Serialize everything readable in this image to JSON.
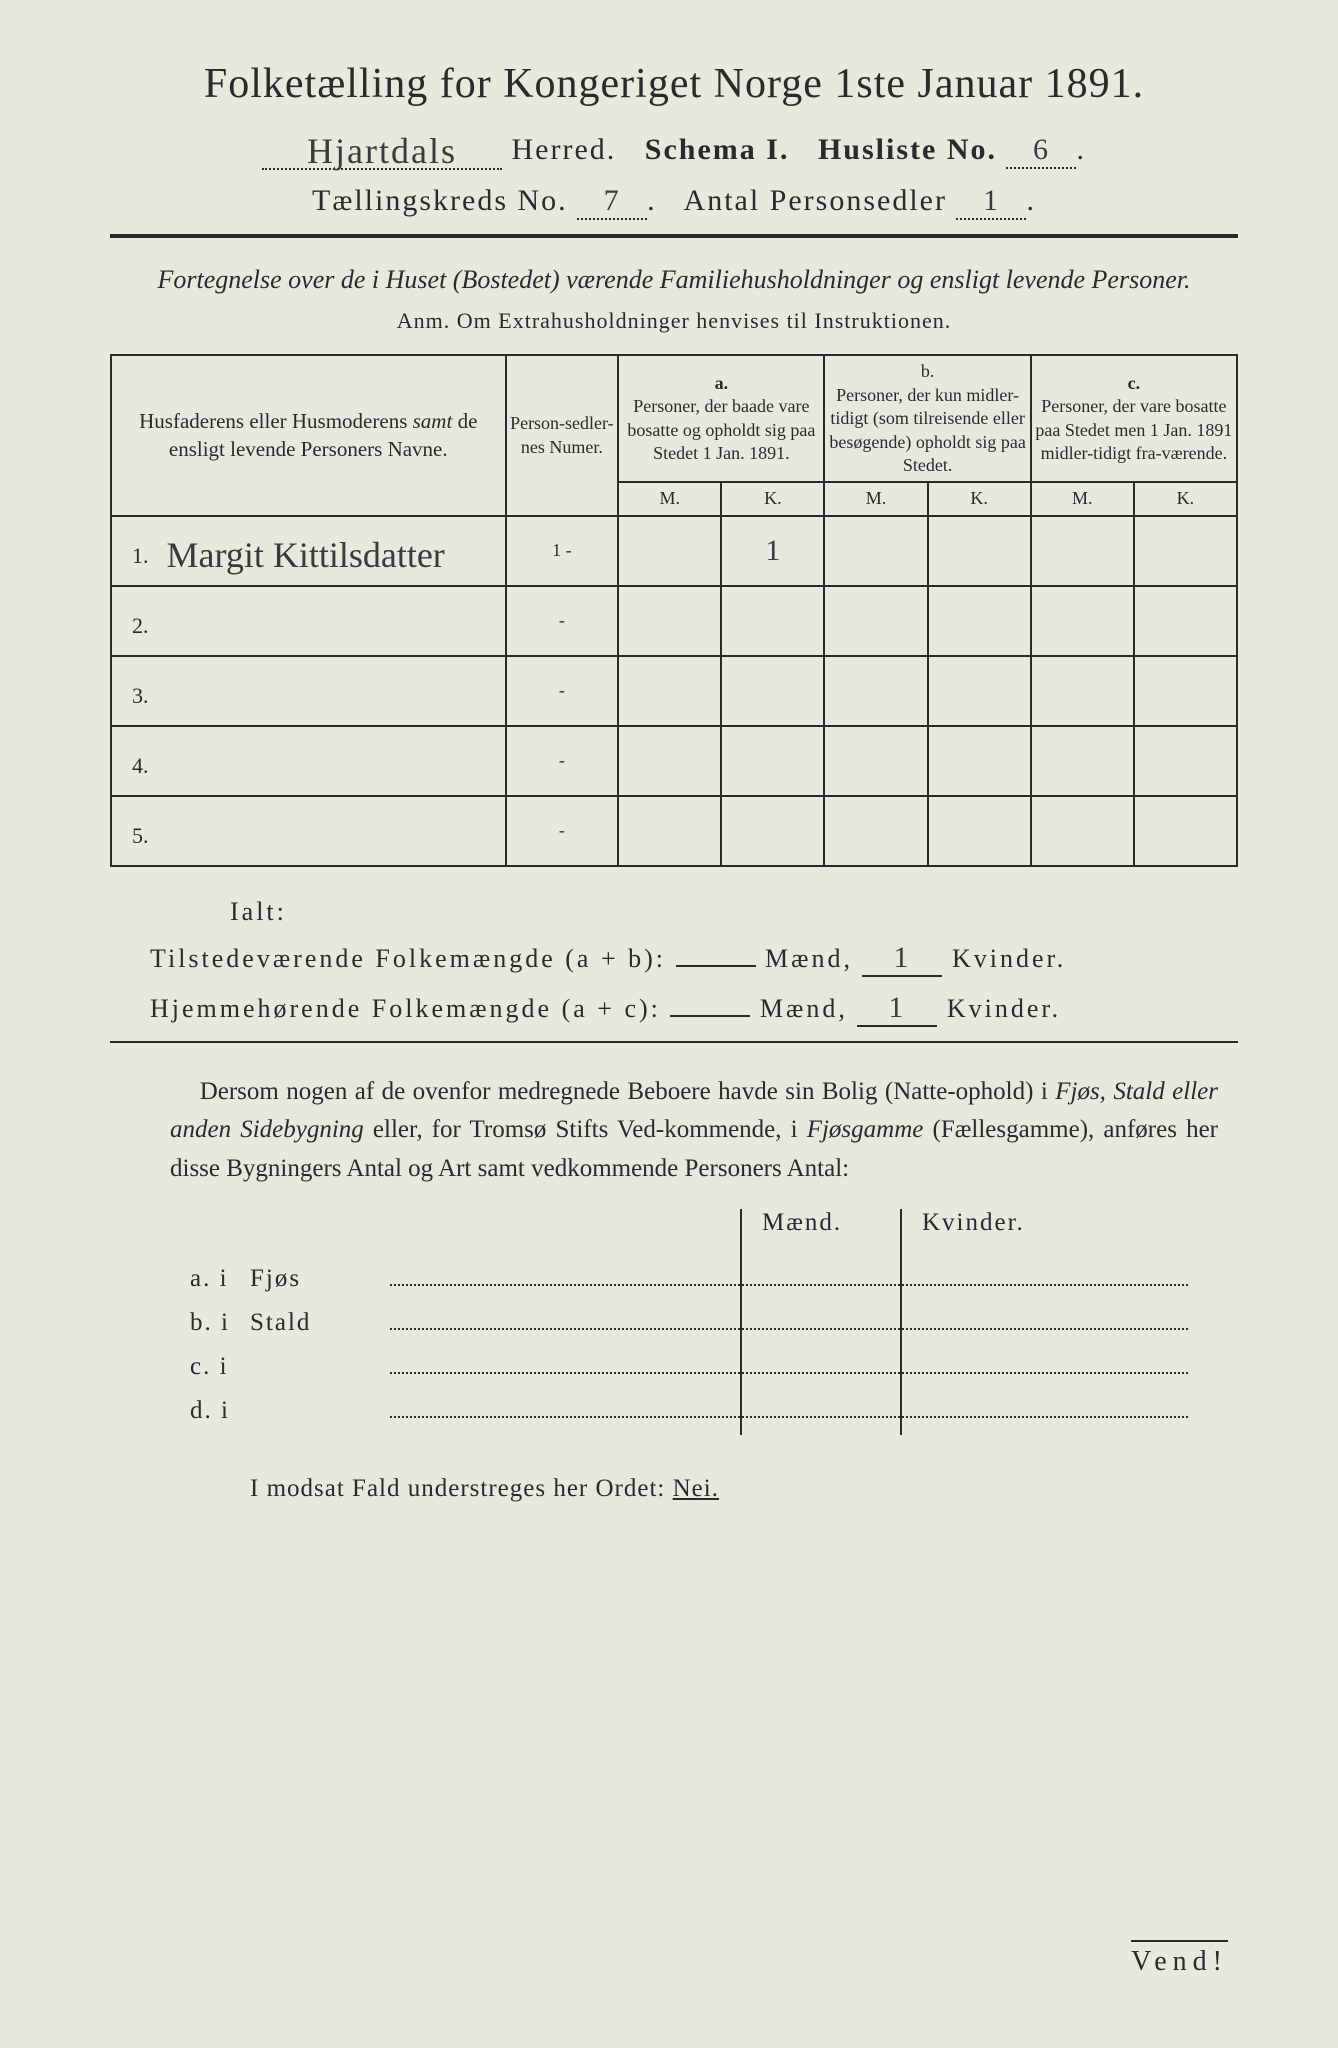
{
  "header": {
    "title": "Folketælling for Kongeriget Norge 1ste Januar 1891.",
    "herred_handwritten": "Hjartdals",
    "herred_label": "Herred.",
    "schema_label": "Schema I.",
    "husliste_label": "Husliste No.",
    "husliste_no": "6",
    "kreds_label": "Tællingskreds No.",
    "kreds_no": "7",
    "personsedler_label": "Antal Personsedler",
    "personsedler_no": "1"
  },
  "subtitle": "Fortegnelse over de i Huset (Bostedet) værende Familiehusholdninger og ensligt levende Personer.",
  "anm": "Anm.   Om Extrahusholdninger henvises til Instruktionen.",
  "table": {
    "col_name": "Husfaderens eller Husmoderens samt de ensligt levende Personers Navne.",
    "col_num": "Person-sedler-nes Numer.",
    "col_a_head": "a.",
    "col_a": "Personer, der baade vare bosatte og opholdt sig paa Stedet 1 Jan. 1891.",
    "col_b_head": "b.",
    "col_b": "Personer, der kun midler-tidigt (som tilreisende eller besøgende) opholdt sig paa Stedet.",
    "col_c_head": "c.",
    "col_c": "Personer, der vare bosatte paa Stedet men 1 Jan. 1891 midler-tidigt fra-værende.",
    "m": "M.",
    "k": "K.",
    "rows": [
      {
        "n": "1.",
        "name": "Margit Kittilsdatter",
        "num": "1 -",
        "a_m": "",
        "a_k": "1",
        "b_m": "",
        "b_k": "",
        "c_m": "",
        "c_k": ""
      },
      {
        "n": "2.",
        "name": "",
        "num": "-",
        "a_m": "",
        "a_k": "",
        "b_m": "",
        "b_k": "",
        "c_m": "",
        "c_k": ""
      },
      {
        "n": "3.",
        "name": "",
        "num": "-",
        "a_m": "",
        "a_k": "",
        "b_m": "",
        "b_k": "",
        "c_m": "",
        "c_k": ""
      },
      {
        "n": "4.",
        "name": "",
        "num": "-",
        "a_m": "",
        "a_k": "",
        "b_m": "",
        "b_k": "",
        "c_m": "",
        "c_k": ""
      },
      {
        "n": "5.",
        "name": "",
        "num": "-",
        "a_m": "",
        "a_k": "",
        "b_m": "",
        "b_k": "",
        "c_m": "",
        "c_k": ""
      }
    ]
  },
  "totals": {
    "ialt": "Ialt:",
    "line1_label": "Tilstedeværende Folkemængde (a + b):",
    "line2_label": "Hjemmehørende Folkemængde (a + c):",
    "maend": "Mænd,",
    "kvinder": "Kvinder.",
    "kv1": "1",
    "kv2": "1"
  },
  "paragraph": "Dersom nogen af de ovenfor medregnede Beboere havde sin Bolig (Natte-ophold) i Fjøs, Stald eller anden Sidebygning eller, for Tromsø Stifts Ved-kommende, i Fjøsgamme (Fællesgamme), anføres her disse Bygningers Antal og Art samt vedkommende Personers Antal:",
  "buildings": {
    "head_m": "Mænd.",
    "head_k": "Kvinder.",
    "rows": [
      {
        "label": "a.  i",
        "type": "Fjøs"
      },
      {
        "label": "b.  i",
        "type": "Stald"
      },
      {
        "label": "c.  i",
        "type": ""
      },
      {
        "label": "d.  i",
        "type": ""
      }
    ]
  },
  "closing": "I modsat Fald understreges her Ordet: ",
  "nei": "Nei.",
  "vend": "Vend!",
  "colors": {
    "paper": "#e8e8df",
    "ink": "#2a2a2a"
  }
}
